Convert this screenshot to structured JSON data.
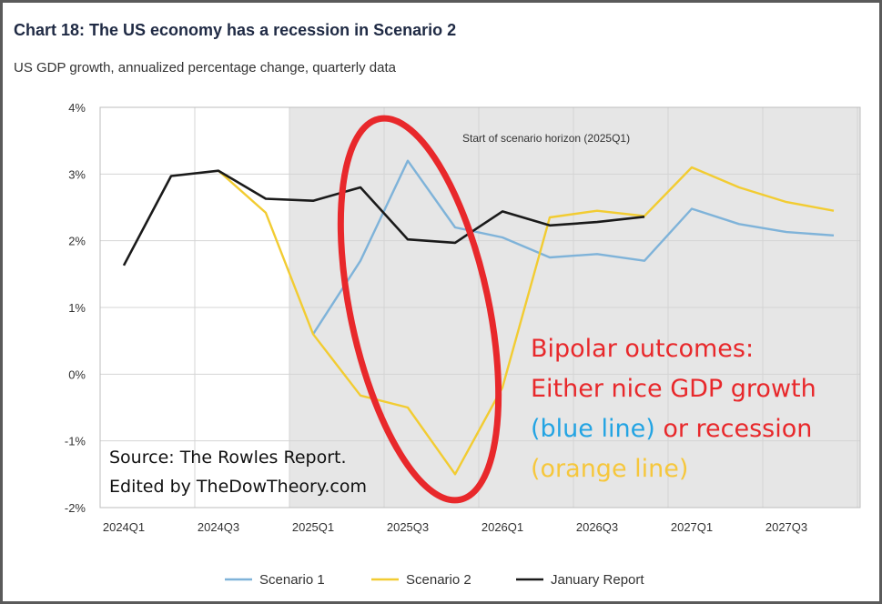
{
  "chart_data": {
    "type": "line",
    "title": "Chart 18: The US economy has a recession in Scenario 2",
    "subtitle": "US GDP growth, annualized percentage change, quarterly data",
    "x_labels": [
      "2024Q1",
      "2024Q3",
      "2025Q1",
      "2025Q3",
      "2026Q1",
      "2026Q3",
      "2027Q1",
      "2027Q3"
    ],
    "y_ticks": [
      "4%",
      "3%",
      "2%",
      "1%",
      "0%",
      "-1%",
      "-2%"
    ],
    "ylim": [
      -2,
      4
    ],
    "x_range": [
      0,
      15
    ],
    "shaded_region": {
      "from": 4,
      "to": 16,
      "label": "Start of scenario horizon (2025Q1)"
    },
    "series": [
      {
        "name": "Scenario 1",
        "color": "#7fb3d9",
        "x": [
          4,
          5,
          6,
          7,
          8,
          9,
          10,
          11,
          12,
          13,
          14,
          15
        ],
        "values": [
          0.6,
          1.7,
          3.2,
          2.2,
          2.05,
          1.75,
          1.8,
          1.7,
          2.48,
          2.25,
          2.13,
          2.08
        ]
      },
      {
        "name": "Scenario 2",
        "color": "#f2cc32",
        "x": [
          2,
          3,
          4,
          5,
          6,
          7,
          8,
          9,
          10,
          11,
          12,
          13,
          14,
          15
        ],
        "values": [
          3.05,
          2.42,
          0.6,
          -0.32,
          -0.5,
          -1.5,
          -0.2,
          2.35,
          2.45,
          2.37,
          3.1,
          2.8,
          2.58,
          2.45
        ]
      },
      {
        "name": "January Report",
        "color": "#1a1a1a",
        "x": [
          0,
          1,
          2,
          3,
          4,
          5,
          6,
          7,
          8,
          9,
          10,
          11
        ],
        "values": [
          1.63,
          2.97,
          3.05,
          2.63,
          2.6,
          2.8,
          2.02,
          1.97,
          2.44,
          2.23,
          2.28,
          2.36
        ]
      }
    ],
    "annotations": {
      "source_lines": [
        "Source: The Rowles Report.",
        "Edited by TheDowTheory.com"
      ],
      "bipolar_1": "Bipolar outcomes:",
      "bipolar_2": "Either nice GDP growth",
      "blue_part": "(blue line)",
      "or_recession": " or recession",
      "orange_part": "(orange line)"
    },
    "colors": {
      "red": "#e8282b",
      "blue": "#23a4e3",
      "orange": "#f6c73c",
      "shade": "#e6e6e6"
    }
  }
}
